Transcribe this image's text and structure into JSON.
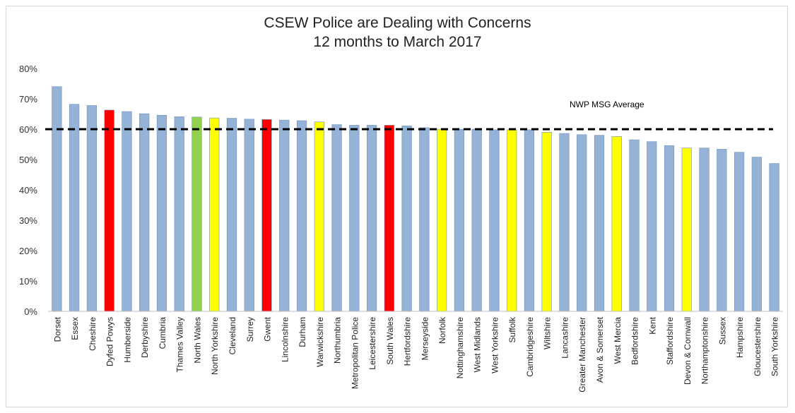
{
  "chart_data": {
    "type": "bar",
    "title": "CSEW Police are Dealing with Concerns",
    "subtitle": "12 months to March 2017",
    "xlabel": "",
    "ylabel": "",
    "ylim": [
      0,
      0.8
    ],
    "yticks": [
      0,
      0.1,
      0.2,
      0.3,
      0.4,
      0.5,
      0.6,
      0.7,
      0.8
    ],
    "ytick_labels": [
      "0%",
      "10%",
      "20%",
      "30%",
      "40%",
      "50%",
      "60%",
      "70%",
      "80%"
    ],
    "grid": false,
    "legend": "none",
    "categories": [
      "Dorset",
      "Essex",
      "Cheshire",
      "Dyfed Powys",
      "Humberside",
      "Derbyshire",
      "Cumbria",
      "Thames Valley",
      "North Wales",
      "North Yorkshire",
      "Cleveland",
      "Surrey",
      "Gwent",
      "Lincolnshire",
      "Durham",
      "Warwickshire",
      "Northumbria",
      "Metropolitan Police",
      "Leicestershire",
      "South Wales",
      "Hertfordshire",
      "Merseyside",
      "Norfolk",
      "Nottinghamshire",
      "West Midlands",
      "West Yorkshire",
      "Suffolk",
      "Cambridgeshire",
      "Wiltshire",
      "Lancashire",
      "Greater Manchester",
      "Avon & Somerset",
      "West Mercia",
      "Bedfordshire",
      "Kent",
      "Staffordshire",
      "Devon & Cornwall",
      "Northamptonshire",
      "Sussex",
      "Hampshire",
      "Gloucestershire",
      "South Yorkshire"
    ],
    "values": [
      0.74,
      0.682,
      0.678,
      0.663,
      0.658,
      0.651,
      0.646,
      0.641,
      0.64,
      0.637,
      0.636,
      0.633,
      0.632,
      0.63,
      0.628,
      0.624,
      0.615,
      0.613,
      0.613,
      0.613,
      0.611,
      0.605,
      0.6,
      0.6,
      0.6,
      0.598,
      0.598,
      0.598,
      0.59,
      0.586,
      0.582,
      0.58,
      0.576,
      0.565,
      0.559,
      0.546,
      0.538,
      0.538,
      0.534,
      0.524,
      0.508,
      0.487
    ],
    "bar_colors": [
      "#95b3d7",
      "#95b3d7",
      "#95b3d7",
      "#ff0000",
      "#95b3d7",
      "#95b3d7",
      "#95b3d7",
      "#95b3d7",
      "#92d050",
      "#ffff00",
      "#95b3d7",
      "#95b3d7",
      "#ff0000",
      "#95b3d7",
      "#95b3d7",
      "#ffff00",
      "#95b3d7",
      "#95b3d7",
      "#95b3d7",
      "#ff0000",
      "#95b3d7",
      "#95b3d7",
      "#ffff00",
      "#95b3d7",
      "#95b3d7",
      "#95b3d7",
      "#ffff00",
      "#95b3d7",
      "#ffff00",
      "#95b3d7",
      "#95b3d7",
      "#95b3d7",
      "#ffff00",
      "#95b3d7",
      "#95b3d7",
      "#95b3d7",
      "#ffff00",
      "#95b3d7",
      "#95b3d7",
      "#95b3d7",
      "#95b3d7",
      "#95b3d7"
    ],
    "reference_line": {
      "value": 0.6,
      "label": "NWP MSG Average",
      "color": "#000000",
      "style": "dashed"
    }
  }
}
